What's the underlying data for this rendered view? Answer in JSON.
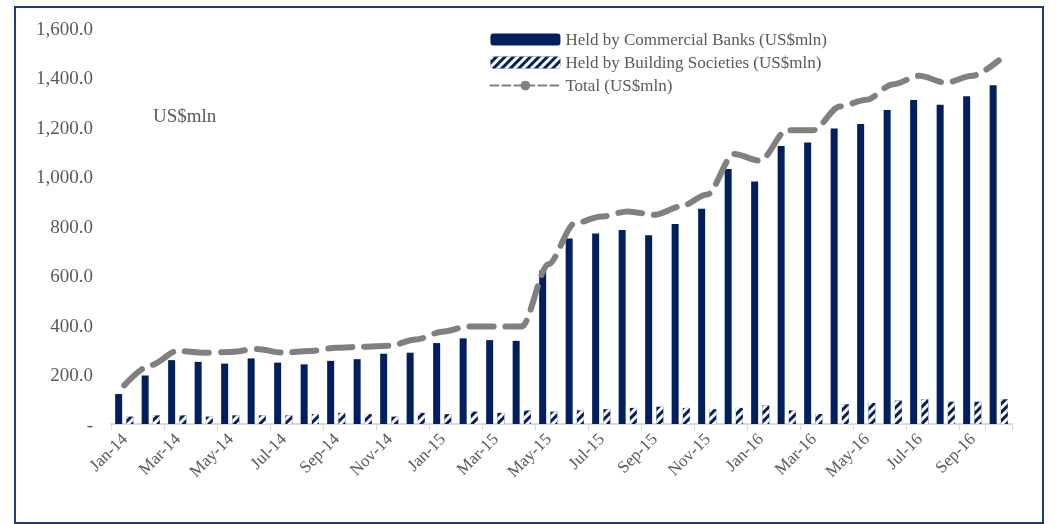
{
  "chart_data": {
    "type": "bar",
    "categories": [
      "Jan-14",
      null,
      "Mar-14",
      null,
      "May-14",
      null,
      "Jul-14",
      null,
      "Sep-14",
      null,
      "Nov-14",
      null,
      "Jan-15",
      null,
      "Mar-15",
      null,
      "May-15",
      null,
      "Jul-15",
      null,
      "Sep-15",
      null,
      "Nov-15",
      null,
      "Jan-16",
      null,
      "Mar-16",
      null,
      "May-16",
      null,
      "Jul-16",
      null,
      "Sep-16",
      null
    ],
    "series": [
      {
        "name": "Held by Commercial Banks (US$mln)",
        "color": "#001f5f",
        "values": [
          121,
          196,
          258,
          251,
          244,
          265,
          248,
          241,
          255,
          262,
          284,
          288,
          327,
          346,
          339,
          336,
          620,
          750,
          770,
          784,
          763,
          808,
          870,
          1030,
          980,
          1123,
          1137,
          1194,
          1212,
          1269,
          1309,
          1290,
          1324,
          1369
        ]
      },
      {
        "name": "Held by Building Societies (US$mln)",
        "color": "#001f5f",
        "values": [
          30,
          35,
          35,
          30,
          35,
          35,
          35,
          40,
          45,
          40,
          30,
          45,
          40,
          50,
          45,
          55,
          50,
          55,
          60,
          65,
          70,
          65,
          60,
          65,
          75,
          55,
          40,
          80,
          85,
          95,
          100,
          90,
          90,
          100
        ]
      },
      {
        "name": "Total (US$mln)",
        "type": "line",
        "color": "#808080",
        "line_style": "dashed",
        "marker": "none",
        "values": [
          156,
          238,
          295,
          288,
          291,
          303,
          288,
          295,
          308,
          312,
          316,
          341,
          373,
          394,
          394,
          394,
          645,
          811,
          838,
          859,
          845,
          879,
          927,
          1091,
          1064,
          1187,
          1187,
          1283,
          1310,
          1372,
          1407,
          1379,
          1407,
          1469
        ]
      }
    ],
    "ylim": [
      0,
      1600
    ],
    "yticks": [
      {
        "value": 0,
        "label": "-"
      },
      {
        "value": 200,
        "label": "200.0"
      },
      {
        "value": 400,
        "label": "400.0"
      },
      {
        "value": 600,
        "label": "600.0"
      },
      {
        "value": 800,
        "label": "800.0"
      },
      {
        "value": 1000,
        "label": "1,000.0"
      },
      {
        "value": 1200,
        "label": "1,200.0"
      },
      {
        "value": 1400,
        "label": "1,400.0"
      },
      {
        "value": 1600,
        "label": "1,600.0"
      }
    ],
    "annotations": [
      "US$mln"
    ],
    "grid": false,
    "legend": "top right"
  }
}
